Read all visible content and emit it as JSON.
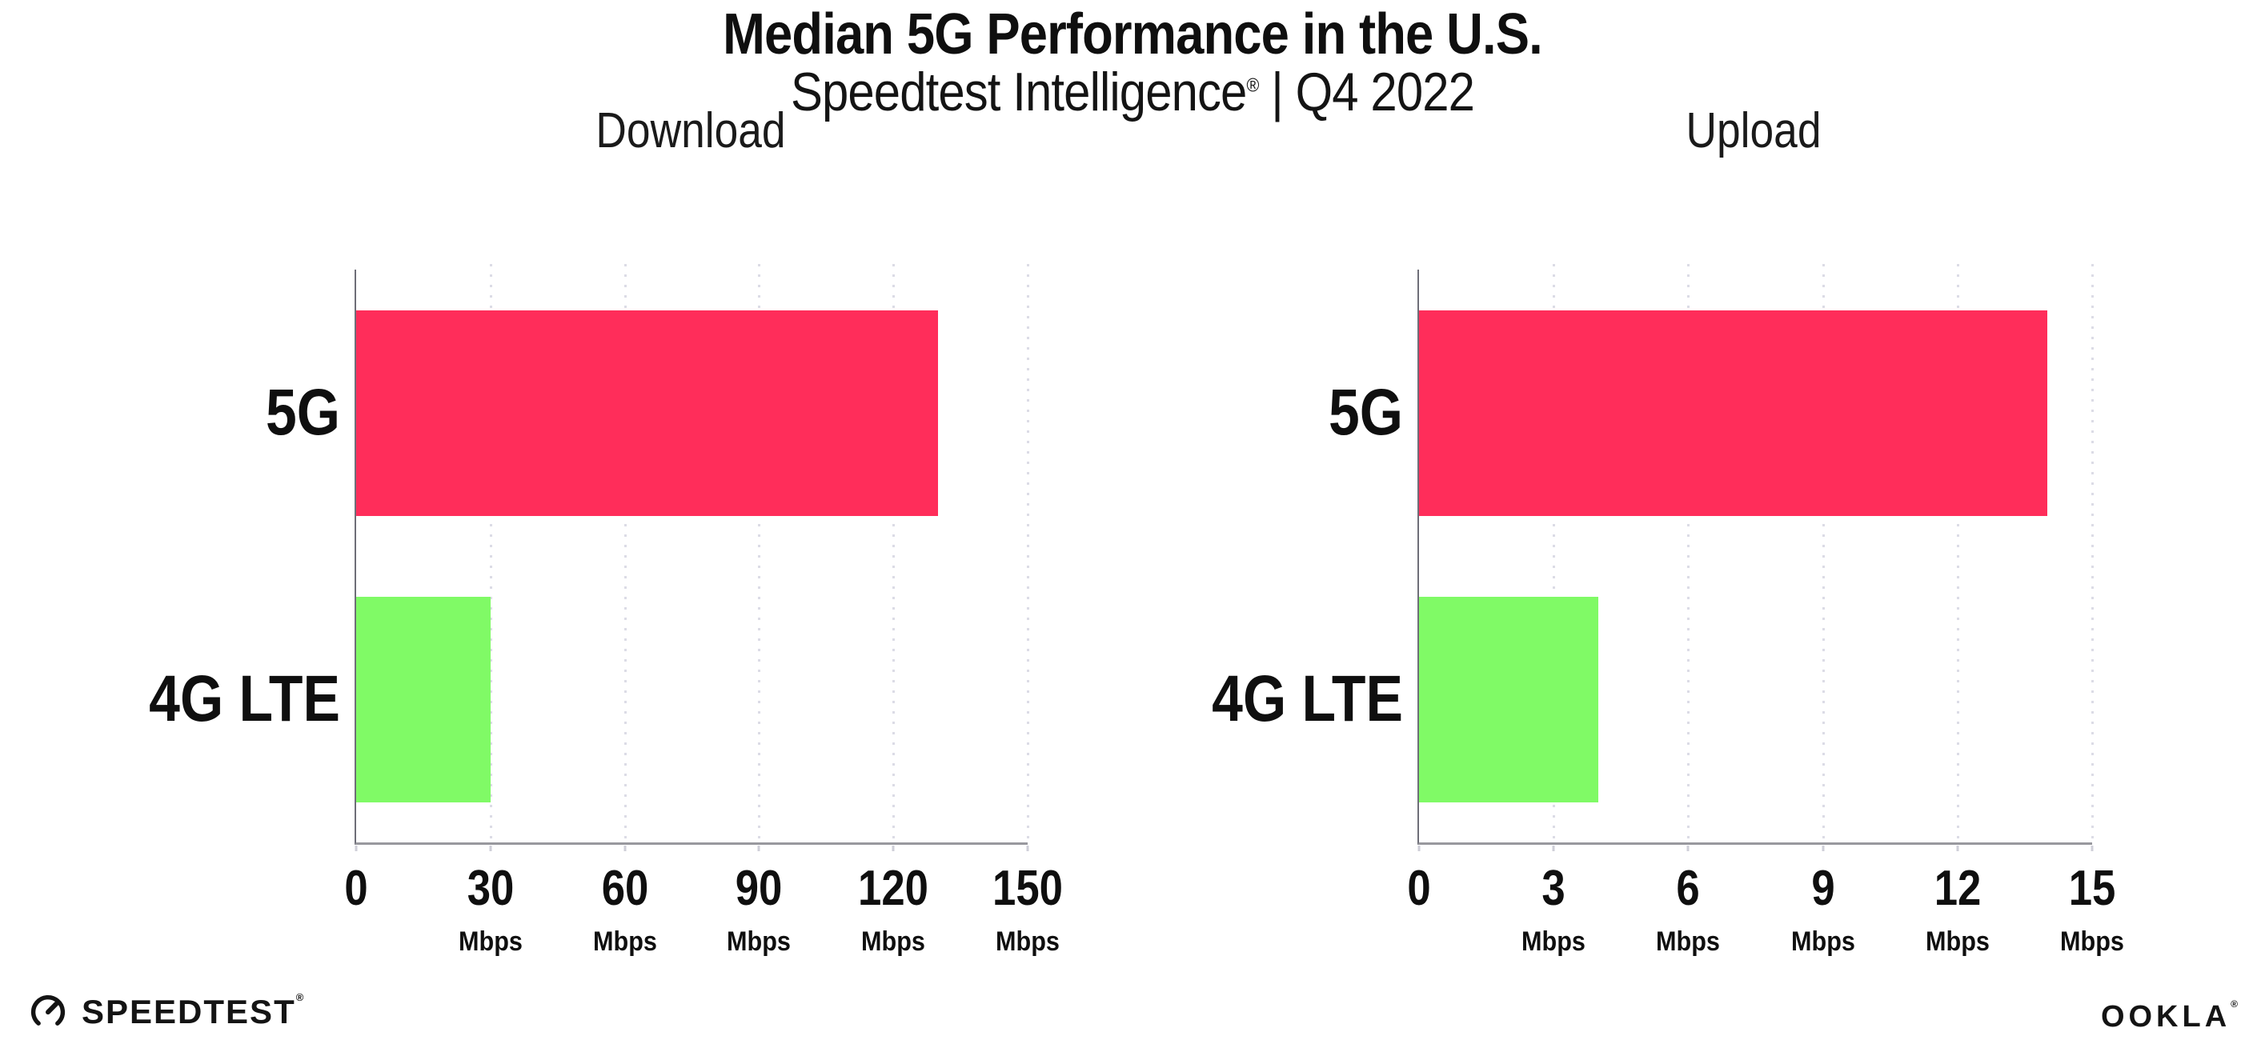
{
  "header": {
    "title": "Median 5G Performance in the U.S.",
    "subtitle": {
      "brand": "Speedtest Intelligence",
      "registered": "®",
      "rest": " | Q4 2022"
    }
  },
  "chart_data": [
    {
      "type": "bar",
      "orientation": "horizontal",
      "title": "Download",
      "categories": [
        "5G",
        "4G LTE"
      ],
      "values": [
        130,
        30
      ],
      "unit": "Mbps",
      "xlim": [
        0,
        150
      ],
      "ticks": [
        0,
        30,
        60,
        90,
        120,
        150
      ],
      "bar_colors": [
        "#ff2d5a",
        "#80fa66"
      ],
      "grid": "dotted-vertical-at-ticks",
      "legend": "none"
    },
    {
      "type": "bar",
      "orientation": "horizontal",
      "title": "Upload",
      "categories": [
        "5G",
        "4G LTE"
      ],
      "values": [
        14,
        4
      ],
      "unit": "Mbps",
      "xlim": [
        0,
        15
      ],
      "ticks": [
        0,
        3,
        6,
        9,
        12,
        15
      ],
      "bar_colors": [
        "#ff2d5a",
        "#80fa66"
      ],
      "grid": "dotted-vertical-at-ticks",
      "legend": "none"
    }
  ],
  "colors": {
    "bar_5g": "#ff2d5a",
    "bar_4g_lte": "#80fa66",
    "axis": "#98989e",
    "gridline": "#dcdce6",
    "text": "#0f0f0f"
  },
  "footer": {
    "speedtest": {
      "label": "SPEEDTEST",
      "registered": "®",
      "icon": "speedtest-gauge-icon"
    },
    "ookla": {
      "label": "OOKLA",
      "registered": "®"
    }
  }
}
